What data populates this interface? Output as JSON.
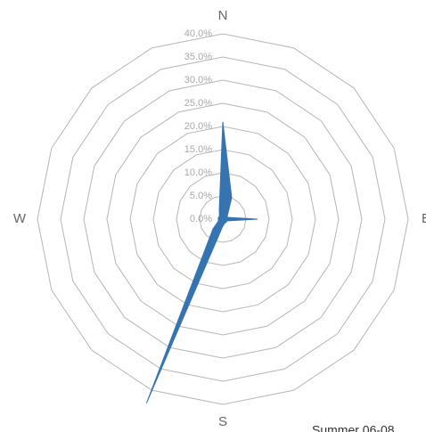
{
  "chart_data": {
    "type": "radar",
    "categories": [
      "N",
      null,
      null,
      null,
      "E",
      null,
      null,
      null,
      "S",
      null,
      null,
      null,
      "W",
      null,
      null,
      null
    ],
    "series": [
      {
        "name": "Summer 06-08",
        "color": "#3574b0",
        "values": [
          21,
          5,
          1.5,
          1,
          7.5,
          1,
          1,
          1,
          1.5,
          43,
          3,
          1,
          1,
          1,
          1,
          2
        ]
      }
    ],
    "ylim": [
      0,
      40
    ],
    "yticks": [
      {
        "value": 0,
        "label": "0.0%"
      },
      {
        "value": 5,
        "label": "5.0%"
      },
      {
        "value": 10,
        "label": "10.0%"
      },
      {
        "value": 15,
        "label": "15.0%"
      },
      {
        "value": 20,
        "label": "20.0%"
      },
      {
        "value": 25,
        "label": "25.0%"
      },
      {
        "value": 30,
        "label": "30.0%"
      },
      {
        "value": 35,
        "label": "35.0%"
      },
      {
        "value": 40,
        "label": "40.0%"
      }
    ],
    "grid": true
  }
}
